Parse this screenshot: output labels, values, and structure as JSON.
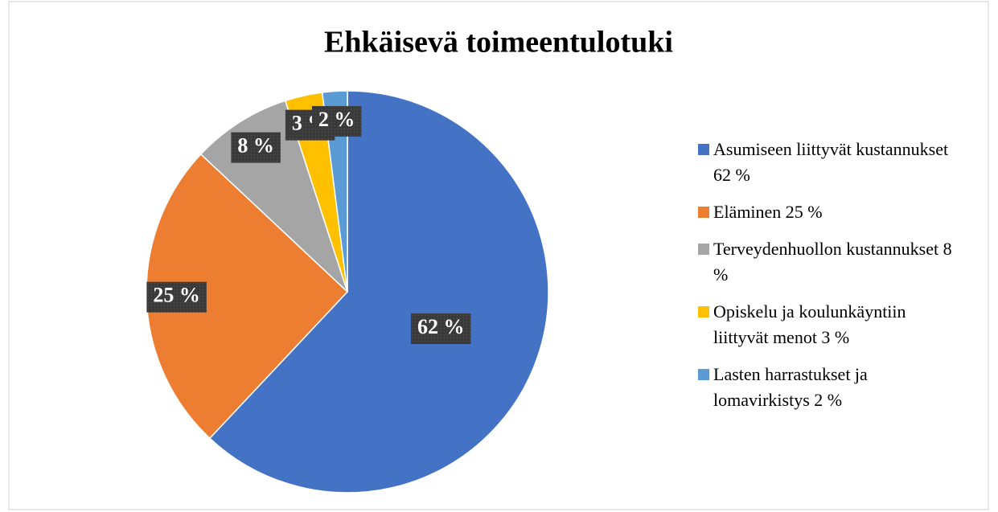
{
  "chart_data": {
    "type": "pie",
    "title": "Ehkäisevä toimeentulotuki",
    "categories": [
      "Asumiseen liittyvät kustannukset 62 %",
      "Eläminen 25 %",
      "Terveydenhuollon kustannukset 8 %",
      "Opiskelu ja koulunkäyntiin liittyvät menot 3 %",
      "Lasten harrastukset ja lomavirkistys 2 %"
    ],
    "values": [
      62,
      25,
      8,
      3,
      2
    ],
    "value_labels": [
      "62 %",
      "25 %",
      "8 %",
      "3 %",
      "2 %"
    ],
    "colors": [
      "#4472c4",
      "#ed7d31",
      "#a5a5a5",
      "#ffc000",
      "#5b9bd5"
    ],
    "legend": "right"
  }
}
